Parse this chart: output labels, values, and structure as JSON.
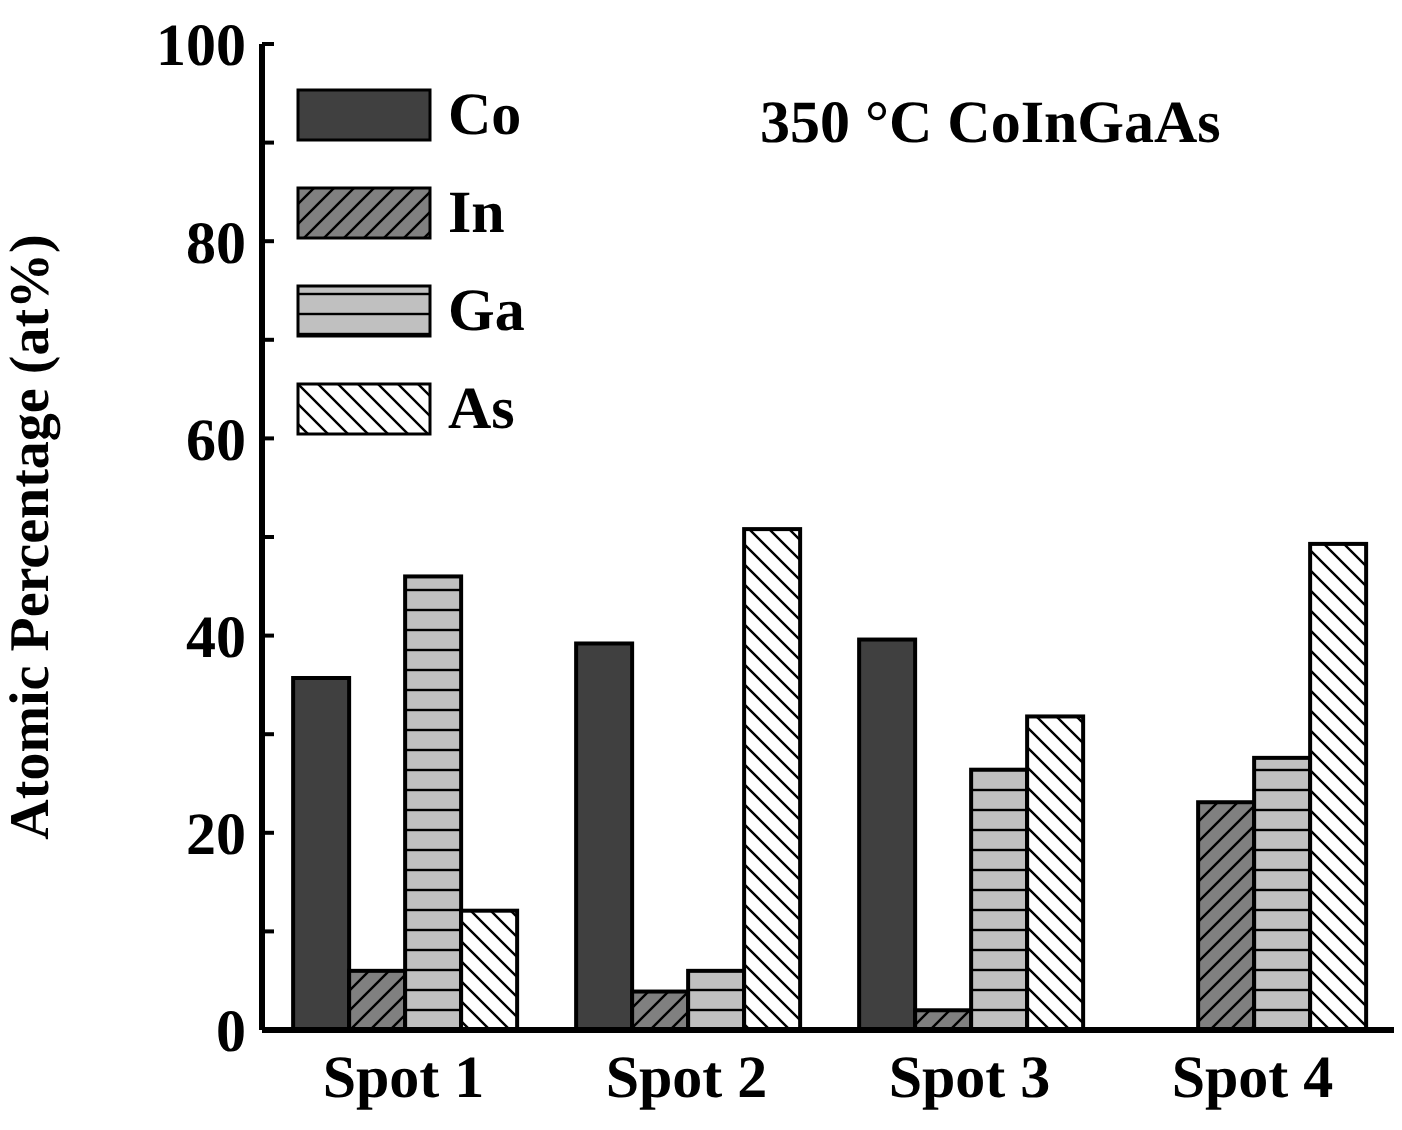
{
  "chart_data": {
    "type": "bar",
    "title": "350 °C CoInGaAs",
    "ylabel": "Atomic Percentage (at%)",
    "categories": [
      "Spot 1",
      "Spot 2",
      "Spot 3",
      "Spot 4"
    ],
    "series": [
      {
        "name": "Co",
        "color": "#404040",
        "values": [
          35.7,
          39.2,
          39.6,
          0
        ]
      },
      {
        "name": "In",
        "color": "#808080",
        "values": [
          6.0,
          3.9,
          2.0,
          23.1
        ]
      },
      {
        "name": "Ga",
        "color": "#c0c0c0",
        "values": [
          46.0,
          6.0,
          26.4,
          27.6
        ]
      },
      {
        "name": "As",
        "color": "#ffffff",
        "values": [
          12.1,
          50.8,
          31.8,
          49.3
        ]
      }
    ],
    "ylim": [
      0,
      100
    ],
    "yticks": [
      0,
      {
        "value": 10,
        "label": null
      },
      20,
      {
        "value": 30,
        "label": null
      },
      40,
      {
        "value": 50,
        "label": null
      },
      60,
      {
        "value": 70,
        "label": null
      },
      80,
      {
        "value": 90,
        "label": null
      },
      100
    ],
    "legend": "top left"
  }
}
